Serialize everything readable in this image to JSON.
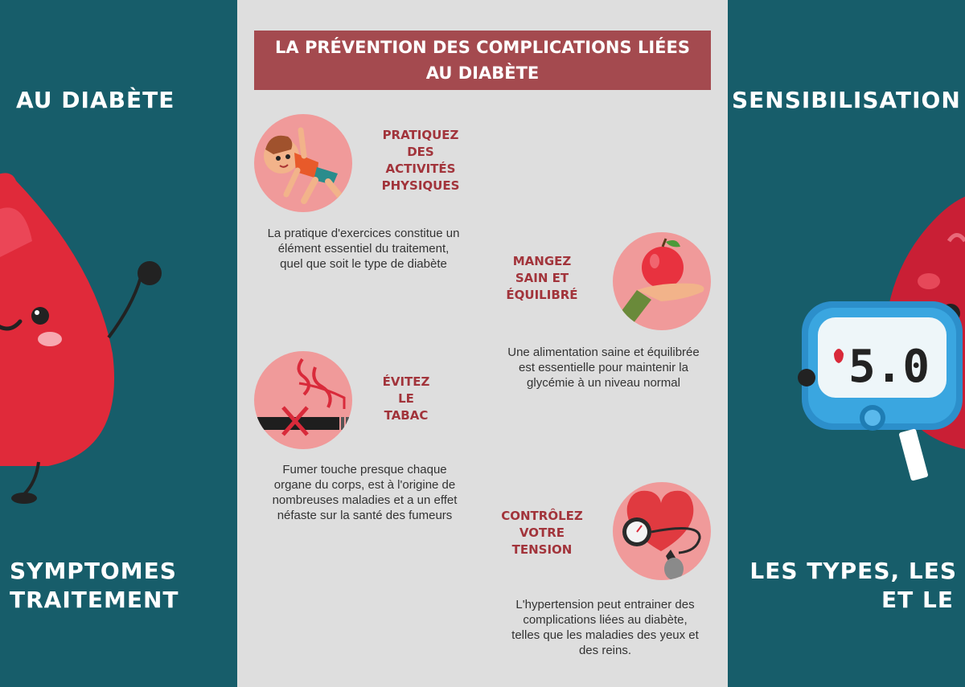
{
  "left_panel": {
    "top_text": "AU DIABÈTE",
    "bottom_line1": "SYMPTOMES",
    "bottom_line2": "TRAITEMENT"
  },
  "right_panel": {
    "top_text": "SENSIBILISATION",
    "bottom_line1": "LES TYPES, LES",
    "bottom_line2": "ET LE",
    "meter_reading": "5.0"
  },
  "center": {
    "title_line1": "LA PRÉVENTION DES COMPLICATIONS LIÉES",
    "title_line2": "AU DIABÈTE",
    "tips": [
      {
        "heading_lines": [
          "PRATIQUEZ",
          "DES",
          "ACTIVITÉS",
          "PHYSIQUES"
        ],
        "desc_lines": [
          "La pratique d'exercices constitue un",
          "élément essentiel du traitement,",
          "quel que soit le type de diabète"
        ],
        "icon": "child-exercise-icon"
      },
      {
        "heading_lines": [
          "MANGEZ",
          "SAIN ET",
          "ÉQUILIBRÉ"
        ],
        "desc_lines": [
          "Une alimentation saine et équilibrée",
          "est essentielle pour maintenir la",
          "glycémie à un niveau normal"
        ],
        "icon": "apple-hand-icon"
      },
      {
        "heading_lines": [
          "ÉVITEZ",
          "LE",
          "TABAC"
        ],
        "desc_lines": [
          "Fumer touche presque chaque",
          "organe du corps, est à l'origine de",
          "nombreuses maladies et a un effet",
          "néfaste sur la santé des fumeurs"
        ],
        "icon": "no-smoking-icon"
      },
      {
        "heading_lines": [
          "CONTRÔLEZ",
          "VOTRE",
          "TENSION"
        ],
        "desc_lines": [
          "L'hypertension peut entrainer des",
          "complications liées au diabète,",
          "telles que les maladies des yeux et",
          "des reins."
        ],
        "icon": "heart-blood-pressure-icon"
      }
    ]
  },
  "colors": {
    "teal_panel": "#175d6a",
    "center_bg": "#dedede",
    "title_bg": "#a44a4f",
    "heading_red": "#a2343b",
    "circle_pink": "#f09a9a",
    "drop_red": "#e02a3a"
  }
}
